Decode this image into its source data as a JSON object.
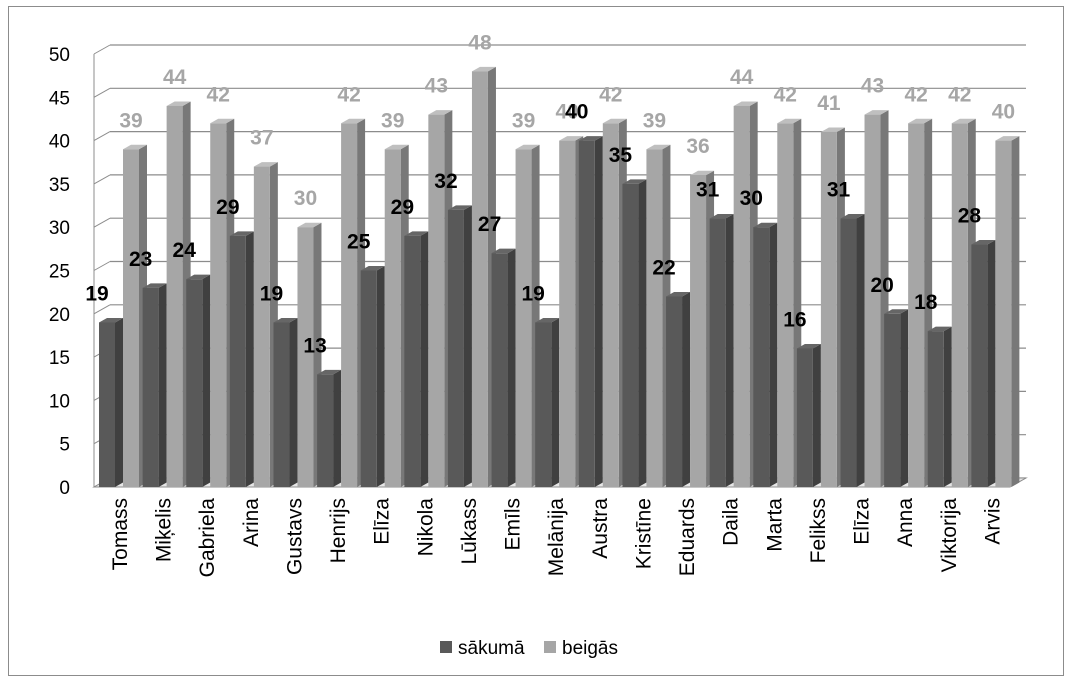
{
  "chart_data": {
    "type": "bar",
    "title": "",
    "xlabel": "",
    "ylabel": "",
    "ylim": [
      0,
      50
    ],
    "y_ticks": [
      0,
      5,
      10,
      15,
      20,
      25,
      30,
      35,
      40,
      45,
      50
    ],
    "grid": true,
    "legend_position": "bottom",
    "categories": [
      "Tomass",
      "Miķelis",
      "Gabriela",
      "Arina",
      "Gustavs",
      "Henrijs",
      "Elīza",
      "Nikola",
      "Lūkass",
      "Emīls",
      "Melānija",
      "Austra",
      "Kristīne",
      "Eduards",
      "Daila",
      "Marta",
      "Felikss",
      "Elīza",
      "Anna",
      "Viktorija",
      "Arvis"
    ],
    "series": [
      {
        "name": "sākumā",
        "color": "#595959",
        "values": [
          19,
          23,
          24,
          29,
          19,
          13,
          25,
          29,
          32,
          27,
          19,
          40,
          35,
          22,
          31,
          30,
          16,
          31,
          20,
          18,
          28
        ]
      },
      {
        "name": "beigās",
        "color": "#a6a6a6",
        "values": [
          39,
          44,
          42,
          37,
          30,
          42,
          39,
          43,
          48,
          39,
          40,
          42,
          39,
          36,
          44,
          42,
          41,
          43,
          42,
          42,
          40
        ]
      }
    ]
  }
}
